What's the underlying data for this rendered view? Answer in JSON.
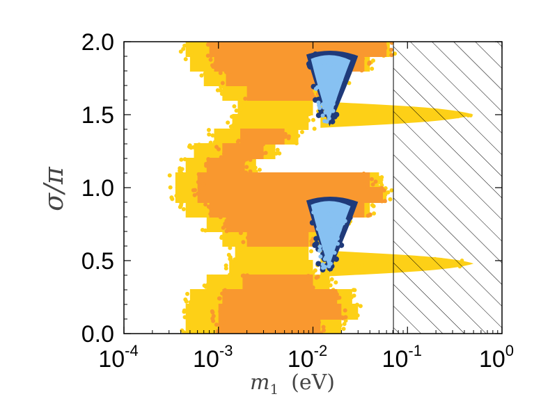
{
  "chart_data": {
    "type": "scatter",
    "title": "",
    "xlabel": "m_1 (eV)",
    "xlabel_symbol": "m",
    "xlabel_sub": "1",
    "xlabel_unit": "(eV)",
    "ylabel": "σ/π",
    "xscale": "log",
    "xlim": [
      0.0001,
      1
    ],
    "ylim": [
      0,
      2
    ],
    "x_ticks": [
      {
        "base": "10",
        "exp": "-4",
        "value": 0.0001
      },
      {
        "base": "10",
        "exp": "-3",
        "value": 0.001
      },
      {
        "base": "10",
        "exp": "-2",
        "value": 0.01
      },
      {
        "base": "10",
        "exp": "-1",
        "value": 0.1
      },
      {
        "base": "10",
        "exp": "0",
        "value": 1
      }
    ],
    "y_ticks": [
      {
        "label": "0.0",
        "value": 0.0
      },
      {
        "label": "0.5",
        "value": 0.5
      },
      {
        "label": "1.0",
        "value": 1.0
      },
      {
        "label": "1.5",
        "value": 1.5
      },
      {
        "label": "2.0",
        "value": 2.0
      }
    ],
    "excluded_region": {
      "x_min": 0.071,
      "x_max": 1,
      "style": "hatched"
    },
    "colors": {
      "outer": "#FDD017",
      "inner": "#F9982F",
      "dark_blue": "#1F3A7A",
      "light_blue": "#87C1F2"
    },
    "series": [
      {
        "name": "outer region (yellow)",
        "color": "#FDD017",
        "bands": [
          {
            "y": [
              0.0,
              0.1
            ],
            "x": [
              0.00045,
              0.02
            ]
          },
          {
            "y": [
              0.1,
              0.2
            ],
            "x": [
              0.00045,
              0.03
            ]
          },
          {
            "y": [
              0.2,
              0.3
            ],
            "x": [
              0.0005,
              0.026
            ]
          },
          {
            "y": [
              0.3,
              0.4
            ],
            "x": [
              0.00075,
              0.015
            ]
          },
          {
            "y": [
              0.4,
              0.5
            ],
            "x": [
              0.0013,
              0.01
            ]
          },
          {
            "y": [
              0.5,
              0.6
            ],
            "x": [
              0.0015,
              0.009
            ]
          },
          {
            "y": [
              0.6,
              0.7
            ],
            "x": [
              0.0011,
              0.013
            ]
          },
          {
            "y": [
              0.7,
              0.8
            ],
            "x": [
              0.00075,
              0.022
            ]
          },
          {
            "y": [
              0.8,
              0.9
            ],
            "x": [
              0.00045,
              0.04
            ]
          },
          {
            "y": [
              0.9,
              1.0
            ],
            "x": [
              0.00035,
              0.06
            ]
          },
          {
            "y": [
              1.0,
              1.1
            ],
            "x": [
              0.00035,
              0.05
            ]
          },
          {
            "y": [
              1.1,
              1.2
            ],
            "x": [
              0.00045,
              0.0025
            ]
          },
          {
            "y": [
              1.2,
              1.3
            ],
            "x": [
              0.00055,
              0.004
            ]
          },
          {
            "y": [
              1.3,
              1.4
            ],
            "x": [
              0.0009,
              0.007
            ]
          },
          {
            "y": [
              1.4,
              1.5
            ],
            "x": [
              0.0014,
              0.009
            ]
          },
          {
            "y": [
              1.5,
              1.6
            ],
            "x": [
              0.0016,
              0.01
            ]
          },
          {
            "y": [
              1.6,
              1.7
            ],
            "x": [
              0.0011,
              0.013
            ]
          },
          {
            "y": [
              1.7,
              1.8
            ],
            "x": [
              0.0007,
              0.022
            ]
          },
          {
            "y": [
              1.8,
              1.9
            ],
            "x": [
              0.0005,
              0.04
            ]
          },
          {
            "y": [
              1.9,
              2.0
            ],
            "x": [
              0.00045,
              0.065
            ]
          }
        ],
        "tails": [
          {
            "y_center": 1.5,
            "x": [
              0.012,
              0.5
            ],
            "half_width": 0.09
          },
          {
            "y_center": 0.48,
            "x": [
              0.012,
              0.5
            ],
            "half_width": 0.09
          }
        ]
      },
      {
        "name": "inner region (orange)",
        "color": "#F9982F",
        "bands": [
          {
            "y": [
              0.0,
              0.1
            ],
            "x": [
              0.001,
              0.012
            ]
          },
          {
            "y": [
              0.1,
              0.2
            ],
            "x": [
              0.001,
              0.02
            ]
          },
          {
            "y": [
              0.2,
              0.3
            ],
            "x": [
              0.0011,
              0.018
            ]
          },
          {
            "y": [
              0.3,
              0.4
            ],
            "x": [
              0.0018,
              0.01
            ]
          },
          {
            "y": [
              0.6,
              0.7
            ],
            "x": [
              0.002,
              0.009
            ]
          },
          {
            "y": [
              0.7,
              0.8
            ],
            "x": [
              0.0012,
              0.016
            ]
          },
          {
            "y": [
              0.8,
              0.9
            ],
            "x": [
              0.0008,
              0.035
            ]
          },
          {
            "y": [
              0.9,
              1.0
            ],
            "x": [
              0.0006,
              0.055
            ]
          },
          {
            "y": [
              1.0,
              1.1
            ],
            "x": [
              0.0006,
              0.04
            ]
          },
          {
            "y": [
              1.1,
              1.2
            ],
            "x": [
              0.00075,
              0.0019
            ]
          },
          {
            "y": [
              1.2,
              1.3
            ],
            "x": [
              0.0011,
              0.003
            ]
          },
          {
            "y": [
              1.3,
              1.4
            ],
            "x": [
              0.0017,
              0.005
            ]
          },
          {
            "y": [
              1.6,
              1.7
            ],
            "x": [
              0.002,
              0.01
            ]
          },
          {
            "y": [
              1.7,
              1.8
            ],
            "x": [
              0.0012,
              0.018
            ]
          },
          {
            "y": [
              1.8,
              1.9
            ],
            "x": [
              0.0009,
              0.035
            ]
          },
          {
            "y": [
              1.9,
              2.0
            ],
            "x": [
              0.0008,
              0.06
            ]
          }
        ]
      },
      {
        "name": "best-fit region (dark blue)",
        "color": "#1F3A7A",
        "blobs": [
          {
            "y_range": [
              0.42,
              0.95
            ],
            "x_range": [
              0.0085,
              0.03
            ]
          },
          {
            "y_range": [
              1.42,
              1.95
            ],
            "x_range": [
              0.0085,
              0.03
            ]
          }
        ]
      },
      {
        "name": "best-fit region (light blue)",
        "color": "#87C1F2",
        "blobs": [
          {
            "y_range": [
              0.45,
              0.92
            ],
            "x_range": [
              0.0095,
              0.025
            ]
          },
          {
            "y_range": [
              1.45,
              1.92
            ],
            "x_range": [
              0.0095,
              0.025
            ]
          }
        ]
      }
    ]
  }
}
